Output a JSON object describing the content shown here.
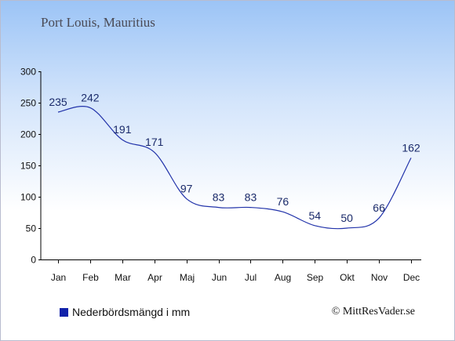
{
  "page": {
    "title": "Port Louis, Mauritius",
    "credit": "© MittResVader.se"
  },
  "legend": {
    "label": "Nederbördsmängd i mm"
  },
  "colors": {
    "line": "#2233aa",
    "swatch": "#1122aa"
  },
  "chart_data": {
    "type": "line",
    "categories": [
      "Jan",
      "Feb",
      "Mar",
      "Apr",
      "Maj",
      "Jun",
      "Jul",
      "Aug",
      "Sep",
      "Okt",
      "Nov",
      "Dec"
    ],
    "series": [
      {
        "name": "Nederbördsmängd i mm",
        "values": [
          235,
          242,
          191,
          171,
          97,
          83,
          83,
          76,
          54,
          50,
          66,
          162
        ]
      }
    ],
    "yticks": [
      0,
      50,
      100,
      150,
      200,
      250,
      300
    ],
    "ylim": [
      0,
      300
    ],
    "title": "Port Louis, Mauritius",
    "xlabel": "",
    "ylabel": "",
    "grid": false,
    "legend_position": "bottom-left"
  }
}
